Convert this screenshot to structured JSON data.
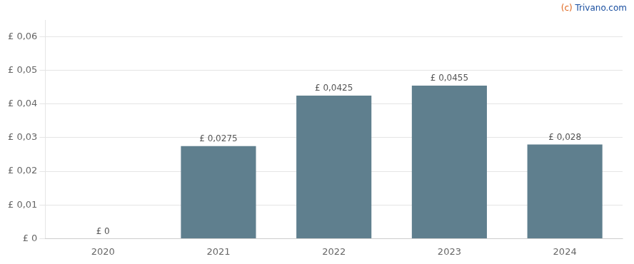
{
  "chart_data": {
    "type": "bar",
    "categories": [
      "2020",
      "2021",
      "2022",
      "2023",
      "2024"
    ],
    "values": [
      0,
      0.0275,
      0.0425,
      0.0455,
      0.028
    ],
    "value_labels": [
      "£ 0",
      "£ 0,0275",
      "£ 0,0425",
      "£ 0,0455",
      "£ 0,028"
    ],
    "data_labels": true,
    "color": "#5f7f8e",
    "ylim": [
      0,
      0.065
    ],
    "yticks": [
      {
        "value": 0,
        "label": "£ 0"
      },
      {
        "value": 0.01,
        "label": "£ 0,01"
      },
      {
        "value": 0.02,
        "label": "£ 0,02"
      },
      {
        "value": 0.03,
        "label": "£ 0,03"
      },
      {
        "value": 0.04,
        "label": "£ 0,04"
      },
      {
        "value": 0.05,
        "label": "£ 0,05"
      },
      {
        "value": 0.06,
        "label": "£ 0,06"
      }
    ],
    "grid": true,
    "annotations": [
      {
        "text": "(c)",
        "color": "#e06820"
      },
      {
        "text": "Trivano.com",
        "color": "#1a4fa0"
      }
    ]
  }
}
